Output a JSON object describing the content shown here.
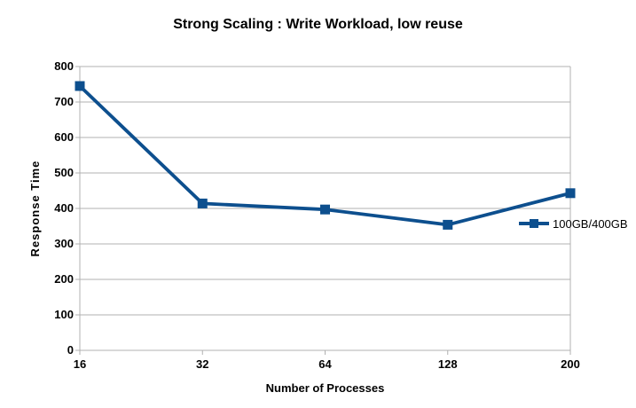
{
  "chart_data": {
    "type": "line",
    "title": "Strong Scaling : Write Workload, low reuse",
    "xlabel": "Number of Processes",
    "ylabel": "Response Time",
    "categories": [
      "16",
      "32",
      "64",
      "128",
      "200"
    ],
    "series": [
      {
        "name": "100GB/400GB",
        "color": "#0d4f8e",
        "values": [
          745,
          414,
          397,
          354,
          443
        ]
      }
    ],
    "ylim": [
      0,
      800
    ],
    "yticks": [
      0,
      100,
      200,
      300,
      400,
      500,
      600,
      700,
      800
    ],
    "grid": "horizontal",
    "grid_color": "#b0b0b0",
    "legend_position": "right",
    "marker": "square",
    "background_color": "#ffffff",
    "text_color": "#000000"
  }
}
